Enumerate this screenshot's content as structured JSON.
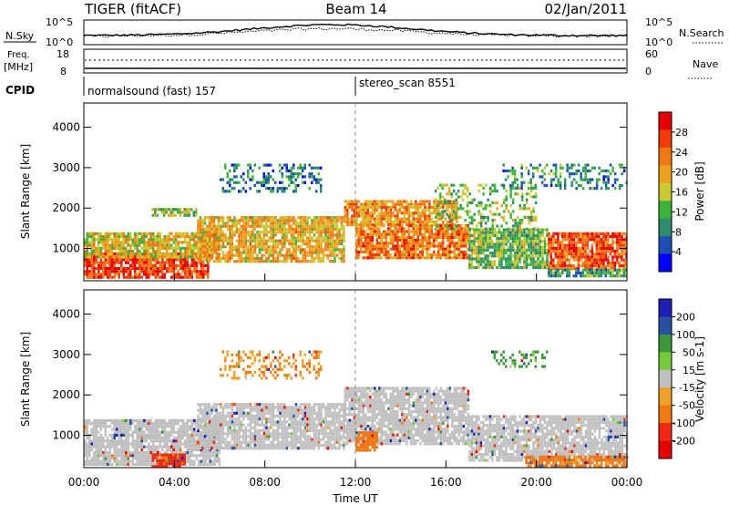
{
  "header": {
    "title": "TIGER (fitACF)",
    "beam": "Beam 14",
    "date": "02/Jan/2011"
  },
  "nsky_panel": {
    "left_label": "N.Sky",
    "left_ticks": [
      "10^5",
      "10^0"
    ],
    "right_label": "N.Search",
    "right_ticks": [
      "10^5",
      "10^0"
    ]
  },
  "freq_panel": {
    "left_label_1": "Freq.",
    "left_label_2": "[MHz]",
    "left_ticks": [
      "18",
      "8"
    ],
    "right_label": "Nave",
    "right_ticks": [
      "60",
      "0"
    ]
  },
  "cpid": {
    "label": "CPID",
    "programs": [
      {
        "name": "normalsound (fast) 157",
        "start_h": 0
      },
      {
        "name": "stereo_scan 8551",
        "start_h": 12
      }
    ]
  },
  "colors": {
    "power_scale": [
      "#0000ff",
      "#1e50b4",
      "#2d8c6e",
      "#3cb43c",
      "#c8c832",
      "#f0a01e",
      "#f07814",
      "#f03c0a",
      "#e60000"
    ],
    "velocity_scale": [
      "#1e1eb4",
      "#2850a0",
      "#3c963c",
      "#78c83c",
      "#c0c0c0",
      "#f0a028",
      "#f07814",
      "#f02814",
      "#e60000"
    ]
  },
  "chart_data": [
    {
      "type": "heatmap",
      "quantity": "Power",
      "ylabel": "Slant Range [km]",
      "yticks": [
        1000,
        2000,
        3000,
        4000
      ],
      "ylim": [
        200,
        4600
      ],
      "xlim_hours": [
        0,
        24
      ],
      "colorbar_label": "Power [dB]",
      "colorbar_ticks": [
        4,
        8,
        12,
        16,
        20,
        24,
        28
      ],
      "colorbar_range": [
        0,
        32
      ],
      "echo_regions": [
        {
          "t0": 0.0,
          "t1": 5.5,
          "r0": 300,
          "r1": 900,
          "value": 27
        },
        {
          "t0": 0.0,
          "t1": 6.0,
          "r0": 800,
          "r1": 1400,
          "value": 18
        },
        {
          "t0": 5.0,
          "t1": 11.5,
          "r0": 700,
          "r1": 1800,
          "value": 19
        },
        {
          "t0": 11.5,
          "t1": 16.5,
          "r0": 1600,
          "r1": 2200,
          "value": 21
        },
        {
          "t0": 12.0,
          "t1": 17.0,
          "r0": 800,
          "r1": 1600,
          "value": 23
        },
        {
          "t0": 17.0,
          "t1": 20.5,
          "r0": 500,
          "r1": 1500,
          "value": 13
        },
        {
          "t0": 20.5,
          "t1": 24.0,
          "r0": 500,
          "r1": 1400,
          "value": 25
        },
        {
          "t0": 20.5,
          "t1": 24.0,
          "r0": 300,
          "r1": 500,
          "value": 10
        },
        {
          "t0": 6.0,
          "t1": 10.5,
          "r0": 2400,
          "r1": 3100,
          "value": 8
        },
        {
          "t0": 15.5,
          "t1": 20.0,
          "r0": 1500,
          "r1": 2600,
          "value": 13
        },
        {
          "t0": 18.5,
          "t1": 24.0,
          "r0": 2500,
          "r1": 3100,
          "value": 9
        },
        {
          "t0": 3.0,
          "t1": 5.0,
          "r0": 1800,
          "r1": 2000,
          "value": 14
        }
      ]
    },
    {
      "type": "heatmap",
      "quantity": "Velocity",
      "ylabel": "Slant Range [km]",
      "yticks": [
        1000,
        2000,
        3000,
        4000
      ],
      "ylim": [
        200,
        4600
      ],
      "xlim_hours": [
        0,
        24
      ],
      "xticks": [
        "00:00",
        "04:00",
        "08:00",
        "12:00",
        "16:00",
        "20:00",
        "00:00"
      ],
      "xlabel": "Time UT",
      "colorbar_label": "Velocity [m s-1]",
      "colorbar_ticks": [
        200,
        100,
        50,
        15,
        -15,
        -50,
        -100,
        -200
      ],
      "echo_regions": [
        {
          "t0": 0.0,
          "t1": 6.0,
          "r0": 300,
          "r1": 1400,
          "value": 0
        },
        {
          "t0": 5.0,
          "t1": 11.5,
          "r0": 700,
          "r1": 1800,
          "value": 0
        },
        {
          "t0": 11.5,
          "t1": 17.0,
          "r0": 800,
          "r1": 2200,
          "value": 0
        },
        {
          "t0": 17.0,
          "t1": 24.0,
          "r0": 400,
          "r1": 1500,
          "value": 0
        },
        {
          "t0": 3.0,
          "t1": 4.5,
          "r0": 200,
          "r1": 550,
          "value": -80
        },
        {
          "t0": 12.0,
          "t1": 13.0,
          "r0": 600,
          "r1": 1100,
          "value": -60
        },
        {
          "t0": 6.0,
          "t1": 10.5,
          "r0": 2400,
          "r1": 3100,
          "value": -30
        },
        {
          "t0": 18.0,
          "t1": 20.5,
          "r0": 2700,
          "r1": 3100,
          "value": 40
        },
        {
          "t0": 19.5,
          "t1": 24.0,
          "r0": 250,
          "r1": 500,
          "value": -40
        }
      ]
    }
  ]
}
